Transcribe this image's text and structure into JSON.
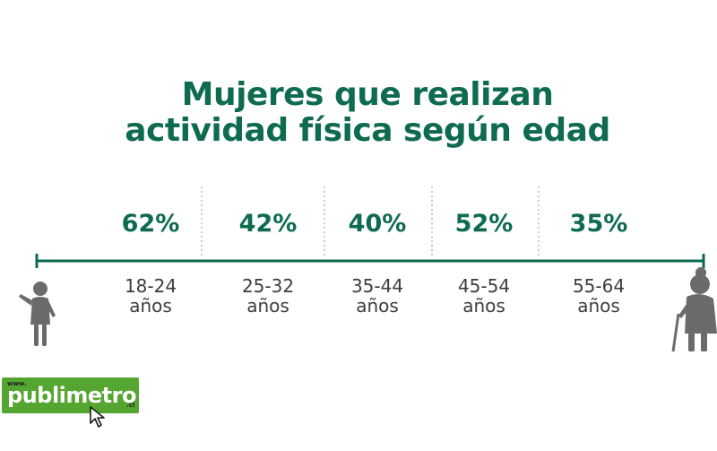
{
  "title_lines": [
    "Mujeres que realizan",
    "actividad física según edad"
  ],
  "colors": {
    "accent": "#0f6b4f",
    "text": "#3d3d3d",
    "figure": "#6b6b6b",
    "logo_bg": "#55a630"
  },
  "chart_data": {
    "type": "table",
    "title": "Mujeres que realizan actividad física según edad",
    "unit": "%",
    "categories": [
      "18-24 años",
      "25-32 años",
      "35-44 años",
      "45-54 años",
      "55-64 años"
    ],
    "values": [
      62,
      42,
      40,
      52,
      35
    ],
    "value_labels": [
      "62%",
      "42%",
      "40%",
      "52%",
      "35%"
    ],
    "age_ranges": [
      "18-24",
      "25-32",
      "35-44",
      "45-54",
      "55-64"
    ],
    "age_unit": "años"
  },
  "icons": {
    "young": "young-woman-icon",
    "old": "elderly-woman-with-cane-icon"
  },
  "logo": {
    "www": "www.",
    "brand": "publimetro",
    "tld": ".cl"
  }
}
